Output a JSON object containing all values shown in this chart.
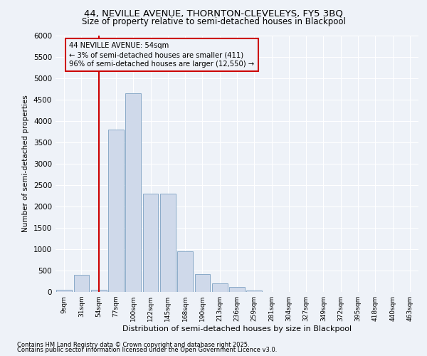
{
  "title1": "44, NEVILLE AVENUE, THORNTON-CLEVELEYS, FY5 3BQ",
  "title2": "Size of property relative to semi-detached houses in Blackpool",
  "xlabel": "Distribution of semi-detached houses by size in Blackpool",
  "ylabel": "Number of semi-detached properties",
  "footnote1": "Contains HM Land Registry data © Crown copyright and database right 2025.",
  "footnote2": "Contains public sector information licensed under the Open Government Licence v3.0.",
  "annotation_title": "44 NEVILLE AVENUE: 54sqm",
  "annotation_line1": "← 3% of semi-detached houses are smaller (411)",
  "annotation_line2": "96% of semi-detached houses are larger (12,550) →",
  "property_size_index": 2,
  "bar_color": "#cfd9ea",
  "bar_edgecolor": "#8aaac8",
  "redline_color": "#cc0000",
  "annotation_box_edgecolor": "#cc0000",
  "background_color": "#eef2f8",
  "categories": [
    "9sqm",
    "31sqm",
    "54sqm",
    "77sqm",
    "100sqm",
    "122sqm",
    "145sqm",
    "168sqm",
    "190sqm",
    "213sqm",
    "236sqm",
    "259sqm",
    "281sqm",
    "304sqm",
    "327sqm",
    "349sqm",
    "372sqm",
    "395sqm",
    "418sqm",
    "440sqm",
    "463sqm"
  ],
  "values": [
    50,
    400,
    50,
    3800,
    4650,
    2300,
    2300,
    950,
    420,
    200,
    115,
    30,
    0,
    0,
    0,
    0,
    0,
    0,
    0,
    0,
    0
  ],
  "ylim": [
    0,
    6000
  ],
  "yticks": [
    0,
    500,
    1000,
    1500,
    2000,
    2500,
    3000,
    3500,
    4000,
    4500,
    5000,
    5500,
    6000
  ]
}
